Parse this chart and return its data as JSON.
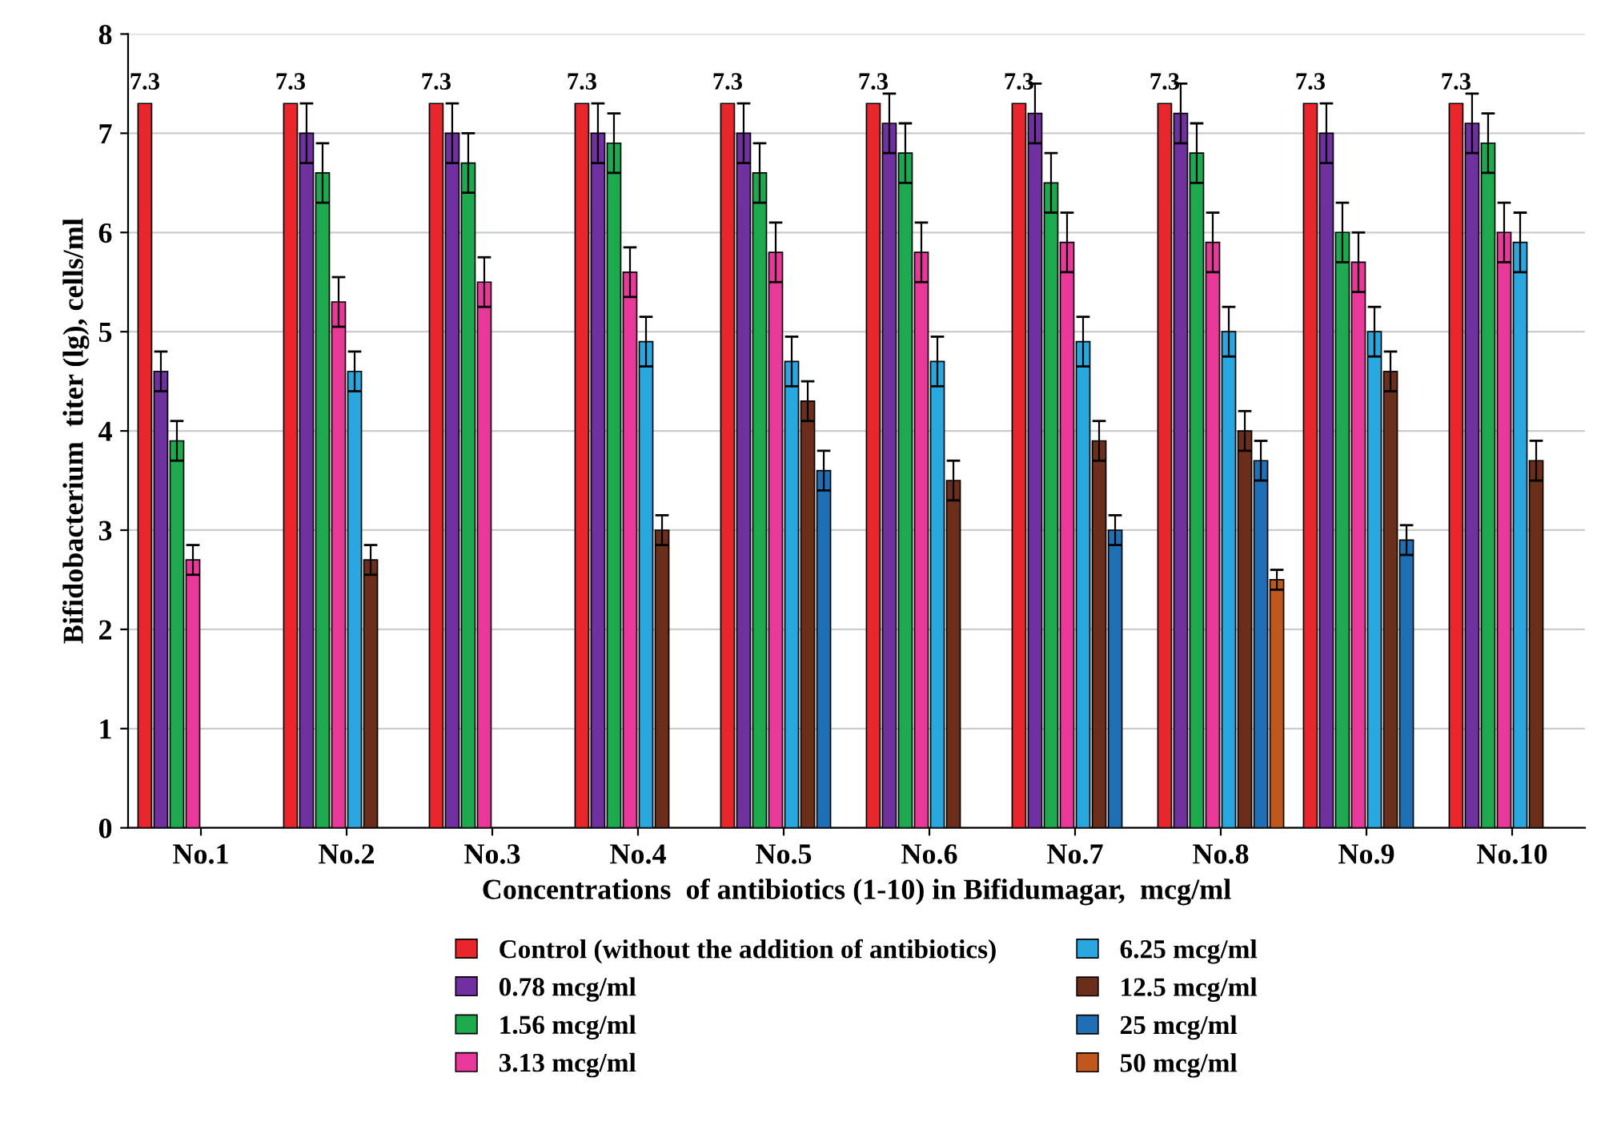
{
  "chart_data": {
    "type": "bar",
    "xlabel": "Concentrations  of antibiotics (1-10) in Bifidumagar,  mcg/ml",
    "ylabel": "Bifidobacterium  titer (lg), cells/ml",
    "categories": [
      "No.1",
      "No.2",
      "No.3",
      "No.4",
      "No.5",
      "No.6",
      "No.7",
      "No.8",
      "No.9",
      "No.10"
    ],
    "ylim": [
      0,
      8
    ],
    "yticks": [
      0,
      1,
      2,
      3,
      4,
      5,
      6,
      7,
      8
    ],
    "grid": "y",
    "legend": "bottom",
    "series": [
      {
        "name": "Control (without the addition of antibiotics)",
        "color": "#e8262b",
        "values": [
          7.3,
          7.3,
          7.3,
          7.3,
          7.3,
          7.3,
          7.3,
          7.3,
          7.3,
          7.3
        ],
        "value_labels": [
          "7.3",
          "7.3",
          "7.3",
          "7.3",
          "7.3",
          "7.3",
          "7.3",
          "7.3",
          "7.3",
          "7.3"
        ]
      },
      {
        "name": "0.78 mcg/ml",
        "color": "#7030a0",
        "values": [
          4.6,
          7.0,
          7.0,
          7.0,
          7.0,
          7.1,
          7.2,
          7.2,
          7.0,
          7.1
        ],
        "errors": [
          0.2,
          0.3,
          0.3,
          0.3,
          0.3,
          0.3,
          0.3,
          0.3,
          0.3,
          0.3
        ]
      },
      {
        "name": "1.56 mcg/ml",
        "color": "#1daa4f",
        "values": [
          3.9,
          6.6,
          6.7,
          6.9,
          6.6,
          6.8,
          6.5,
          6.8,
          6.0,
          6.9
        ],
        "errors": [
          0.2,
          0.3,
          0.3,
          0.3,
          0.3,
          0.3,
          0.3,
          0.3,
          0.3,
          0.3
        ]
      },
      {
        "name": "3.13 mcg/ml",
        "color": "#e8399a",
        "values": [
          2.7,
          5.3,
          5.5,
          5.6,
          5.8,
          5.8,
          5.9,
          5.9,
          5.7,
          6.0
        ],
        "errors": [
          0.15,
          0.25,
          0.25,
          0.25,
          0.3,
          0.3,
          0.3,
          0.3,
          0.3,
          0.3
        ]
      },
      {
        "name": "6.25 mcg/ml",
        "color": "#29a8e0",
        "values": [
          null,
          4.6,
          null,
          4.9,
          4.7,
          4.7,
          4.9,
          5.0,
          5.0,
          5.9
        ],
        "errors": [
          null,
          0.2,
          null,
          0.25,
          0.25,
          0.25,
          0.25,
          0.25,
          0.25,
          0.3
        ]
      },
      {
        "name": "12.5 mcg/ml",
        "color": "#6b2e1a",
        "values": [
          null,
          2.7,
          null,
          3.0,
          4.3,
          3.5,
          3.9,
          4.0,
          4.6,
          3.7
        ],
        "errors": [
          null,
          0.15,
          null,
          0.15,
          0.2,
          0.2,
          0.2,
          0.2,
          0.2,
          0.2
        ]
      },
      {
        "name": "25 mcg/ml",
        "color": "#1f6fb5",
        "values": [
          null,
          null,
          null,
          null,
          3.6,
          null,
          3.0,
          3.7,
          2.9,
          null
        ],
        "errors": [
          null,
          null,
          null,
          null,
          0.2,
          null,
          0.15,
          0.2,
          0.15,
          null
        ]
      },
      {
        "name": "50 mcg/ml",
        "color": "#c0581e",
        "values": [
          null,
          null,
          null,
          null,
          null,
          null,
          null,
          2.5,
          null,
          null
        ],
        "errors": [
          null,
          null,
          null,
          null,
          null,
          null,
          null,
          0.1,
          null,
          null
        ]
      }
    ]
  }
}
